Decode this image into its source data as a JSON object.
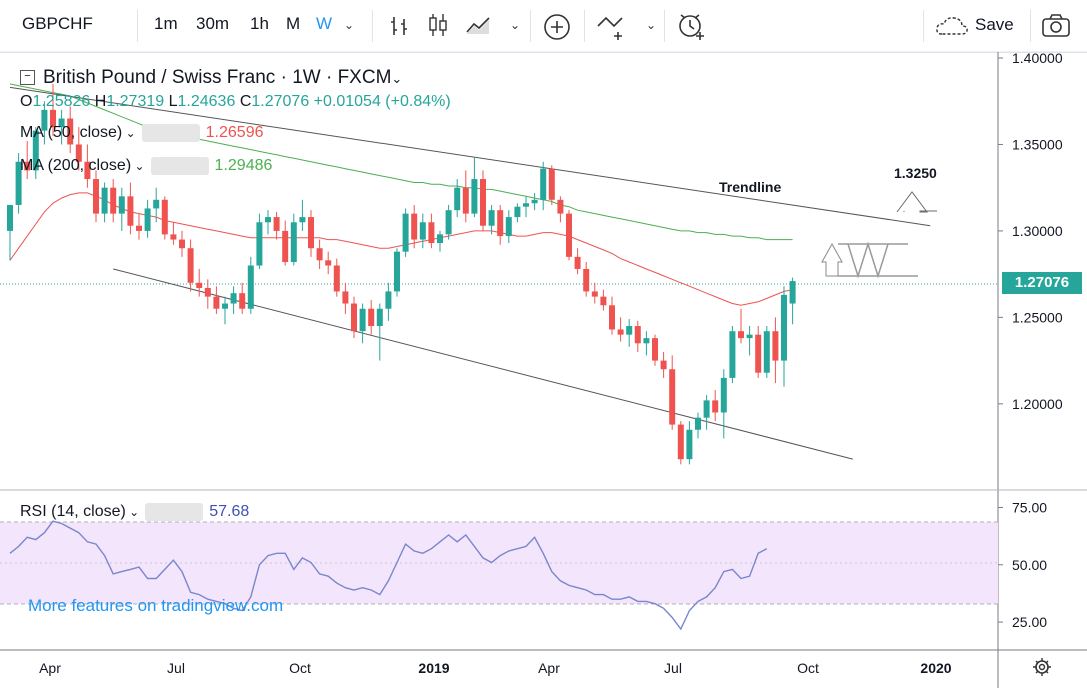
{
  "toolbar": {
    "symbol": "GBPCHF",
    "intervals": [
      "1m",
      "30m",
      "1h",
      "M",
      "W"
    ],
    "active_interval": "W",
    "save_label": "Save"
  },
  "legend": {
    "title": "British Pound / Swiss Franc · 1W · FXCM",
    "ohlc": {
      "o_label": "O",
      "o": "1.25826",
      "h_label": "H",
      "h": "1.27319",
      "l_label": "L",
      "l": "1.24636",
      "c_label": "C",
      "c": "1.27076",
      "chg": "+0.01054 (+0.84%)"
    },
    "ma50": {
      "label": "MA (50, close)",
      "value": "1.26596"
    },
    "ma200": {
      "label": "MA (200, close)",
      "value": "1.29486"
    },
    "rsi": {
      "label": "RSI (14, close)",
      "value": "57.68"
    }
  },
  "annotations": {
    "trendline": "Trendline",
    "target": "1.3250"
  },
  "promo": "More features on tradingview.com",
  "last_price": "1.27076",
  "colors": {
    "up": "#26a69a",
    "down": "#ef5350",
    "ma50": "#ef5350",
    "ma200": "#4caf50",
    "rsi": "#7986cb",
    "rsi_band": "#f3e5fc"
  },
  "chart_data": [
    {
      "type": "candlestick",
      "title": "British Pound / Swiss Franc · 1W · FXCM",
      "ylim": [
        1.16,
        1.4
      ],
      "y_ticks": [
        "1.40000",
        "1.35000",
        "1.30000",
        "1.25000",
        "1.20000"
      ],
      "x_ticks": [
        "Apr",
        "Jul",
        "Oct",
        "2019",
        "Apr",
        "Jul",
        "Oct",
        "2020"
      ],
      "candles": [
        {
          "o": 1.3,
          "h": 1.315,
          "l": 1.283,
          "c": 1.315
        },
        {
          "o": 1.315,
          "h": 1.345,
          "l": 1.31,
          "c": 1.34
        },
        {
          "o": 1.34,
          "h": 1.352,
          "l": 1.33,
          "c": 1.335
        },
        {
          "o": 1.335,
          "h": 1.36,
          "l": 1.33,
          "c": 1.358
        },
        {
          "o": 1.358,
          "h": 1.375,
          "l": 1.35,
          "c": 1.37
        },
        {
          "o": 1.37,
          "h": 1.385,
          "l": 1.355,
          "c": 1.36
        },
        {
          "o": 1.36,
          "h": 1.37,
          "l": 1.35,
          "c": 1.365
        },
        {
          "o": 1.365,
          "h": 1.372,
          "l": 1.345,
          "c": 1.35
        },
        {
          "o": 1.35,
          "h": 1.36,
          "l": 1.335,
          "c": 1.34
        },
        {
          "o": 1.34,
          "h": 1.35,
          "l": 1.325,
          "c": 1.33
        },
        {
          "o": 1.33,
          "h": 1.335,
          "l": 1.305,
          "c": 1.31
        },
        {
          "o": 1.31,
          "h": 1.328,
          "l": 1.305,
          "c": 1.325
        },
        {
          "o": 1.325,
          "h": 1.33,
          "l": 1.305,
          "c": 1.31
        },
        {
          "o": 1.31,
          "h": 1.325,
          "l": 1.3,
          "c": 1.32
        },
        {
          "o": 1.32,
          "h": 1.328,
          "l": 1.298,
          "c": 1.303
        },
        {
          "o": 1.303,
          "h": 1.31,
          "l": 1.295,
          "c": 1.3
        },
        {
          "o": 1.3,
          "h": 1.318,
          "l": 1.296,
          "c": 1.313
        },
        {
          "o": 1.313,
          "h": 1.325,
          "l": 1.305,
          "c": 1.318
        },
        {
          "o": 1.318,
          "h": 1.32,
          "l": 1.295,
          "c": 1.298
        },
        {
          "o": 1.298,
          "h": 1.305,
          "l": 1.292,
          "c": 1.295
        },
        {
          "o": 1.295,
          "h": 1.3,
          "l": 1.285,
          "c": 1.29
        },
        {
          "o": 1.29,
          "h": 1.295,
          "l": 1.265,
          "c": 1.27
        },
        {
          "o": 1.27,
          "h": 1.278,
          "l": 1.262,
          "c": 1.267
        },
        {
          "o": 1.267,
          "h": 1.272,
          "l": 1.255,
          "c": 1.262
        },
        {
          "o": 1.262,
          "h": 1.268,
          "l": 1.252,
          "c": 1.255
        },
        {
          "o": 1.255,
          "h": 1.262,
          "l": 1.246,
          "c": 1.258
        },
        {
          "o": 1.258,
          "h": 1.268,
          "l": 1.252,
          "c": 1.264
        },
        {
          "o": 1.264,
          "h": 1.27,
          "l": 1.252,
          "c": 1.255
        },
        {
          "o": 1.255,
          "h": 1.285,
          "l": 1.252,
          "c": 1.28
        },
        {
          "o": 1.28,
          "h": 1.31,
          "l": 1.278,
          "c": 1.305
        },
        {
          "o": 1.305,
          "h": 1.312,
          "l": 1.298,
          "c": 1.308
        },
        {
          "o": 1.308,
          "h": 1.311,
          "l": 1.295,
          "c": 1.3
        },
        {
          "o": 1.3,
          "h": 1.306,
          "l": 1.28,
          "c": 1.282
        },
        {
          "o": 1.282,
          "h": 1.31,
          "l": 1.28,
          "c": 1.305
        },
        {
          "o": 1.305,
          "h": 1.318,
          "l": 1.3,
          "c": 1.308
        },
        {
          "o": 1.308,
          "h": 1.312,
          "l": 1.285,
          "c": 1.29
        },
        {
          "o": 1.29,
          "h": 1.295,
          "l": 1.278,
          "c": 1.283
        },
        {
          "o": 1.283,
          "h": 1.288,
          "l": 1.275,
          "c": 1.28
        },
        {
          "o": 1.28,
          "h": 1.284,
          "l": 1.262,
          "c": 1.265
        },
        {
          "o": 1.265,
          "h": 1.27,
          "l": 1.252,
          "c": 1.258
        },
        {
          "o": 1.258,
          "h": 1.262,
          "l": 1.238,
          "c": 1.242
        },
        {
          "o": 1.242,
          "h": 1.258,
          "l": 1.235,
          "c": 1.255
        },
        {
          "o": 1.255,
          "h": 1.26,
          "l": 1.24,
          "c": 1.245
        },
        {
          "o": 1.245,
          "h": 1.258,
          "l": 1.225,
          "c": 1.255
        },
        {
          "o": 1.255,
          "h": 1.27,
          "l": 1.248,
          "c": 1.265
        },
        {
          "o": 1.265,
          "h": 1.29,
          "l": 1.262,
          "c": 1.288
        },
        {
          "o": 1.288,
          "h": 1.313,
          "l": 1.285,
          "c": 1.31
        },
        {
          "o": 1.31,
          "h": 1.315,
          "l": 1.29,
          "c": 1.295
        },
        {
          "o": 1.295,
          "h": 1.31,
          "l": 1.29,
          "c": 1.305
        },
        {
          "o": 1.305,
          "h": 1.31,
          "l": 1.29,
          "c": 1.293
        },
        {
          "o": 1.293,
          "h": 1.3,
          "l": 1.288,
          "c": 1.298
        },
        {
          "o": 1.298,
          "h": 1.315,
          "l": 1.295,
          "c": 1.312
        },
        {
          "o": 1.312,
          "h": 1.33,
          "l": 1.308,
          "c": 1.325
        },
        {
          "o": 1.325,
          "h": 1.335,
          "l": 1.305,
          "c": 1.31
        },
        {
          "o": 1.31,
          "h": 1.343,
          "l": 1.308,
          "c": 1.33
        },
        {
          "o": 1.33,
          "h": 1.335,
          "l": 1.3,
          "c": 1.303
        },
        {
          "o": 1.303,
          "h": 1.315,
          "l": 1.298,
          "c": 1.312
        },
        {
          "o": 1.312,
          "h": 1.315,
          "l": 1.292,
          "c": 1.297
        },
        {
          "o": 1.297,
          "h": 1.312,
          "l": 1.293,
          "c": 1.308
        },
        {
          "o": 1.308,
          "h": 1.316,
          "l": 1.305,
          "c": 1.314
        },
        {
          "o": 1.314,
          "h": 1.32,
          "l": 1.308,
          "c": 1.316
        },
        {
          "o": 1.316,
          "h": 1.322,
          "l": 1.312,
          "c": 1.318
        },
        {
          "o": 1.318,
          "h": 1.34,
          "l": 1.312,
          "c": 1.336
        },
        {
          "o": 1.336,
          "h": 1.338,
          "l": 1.315,
          "c": 1.318
        },
        {
          "o": 1.318,
          "h": 1.32,
          "l": 1.305,
          "c": 1.31
        },
        {
          "o": 1.31,
          "h": 1.312,
          "l": 1.283,
          "c": 1.285
        },
        {
          "o": 1.285,
          "h": 1.29,
          "l": 1.275,
          "c": 1.278
        },
        {
          "o": 1.278,
          "h": 1.282,
          "l": 1.262,
          "c": 1.265
        },
        {
          "o": 1.265,
          "h": 1.27,
          "l": 1.258,
          "c": 1.262
        },
        {
          "o": 1.262,
          "h": 1.266,
          "l": 1.254,
          "c": 1.257
        },
        {
          "o": 1.257,
          "h": 1.262,
          "l": 1.24,
          "c": 1.243
        },
        {
          "o": 1.243,
          "h": 1.25,
          "l": 1.236,
          "c": 1.24
        },
        {
          "o": 1.24,
          "h": 1.249,
          "l": 1.233,
          "c": 1.245
        },
        {
          "o": 1.245,
          "h": 1.248,
          "l": 1.23,
          "c": 1.235
        },
        {
          "o": 1.235,
          "h": 1.242,
          "l": 1.228,
          "c": 1.238
        },
        {
          "o": 1.238,
          "h": 1.24,
          "l": 1.222,
          "c": 1.225
        },
        {
          "o": 1.225,
          "h": 1.23,
          "l": 1.215,
          "c": 1.22
        },
        {
          "o": 1.22,
          "h": 1.228,
          "l": 1.185,
          "c": 1.188
        },
        {
          "o": 1.188,
          "h": 1.19,
          "l": 1.165,
          "c": 1.168
        },
        {
          "o": 1.168,
          "h": 1.19,
          "l": 1.165,
          "c": 1.185
        },
        {
          "o": 1.185,
          "h": 1.195,
          "l": 1.18,
          "c": 1.192
        },
        {
          "o": 1.192,
          "h": 1.205,
          "l": 1.185,
          "c": 1.202
        },
        {
          "o": 1.202,
          "h": 1.208,
          "l": 1.19,
          "c": 1.195
        },
        {
          "o": 1.195,
          "h": 1.22,
          "l": 1.18,
          "c": 1.215
        },
        {
          "o": 1.215,
          "h": 1.245,
          "l": 1.212,
          "c": 1.242
        },
        {
          "o": 1.242,
          "h": 1.255,
          "l": 1.235,
          "c": 1.238
        },
        {
          "o": 1.238,
          "h": 1.245,
          "l": 1.228,
          "c": 1.24
        },
        {
          "o": 1.24,
          "h": 1.245,
          "l": 1.215,
          "c": 1.218
        },
        {
          "o": 1.218,
          "h": 1.245,
          "l": 1.215,
          "c": 1.242
        },
        {
          "o": 1.242,
          "h": 1.25,
          "l": 1.212,
          "c": 1.225
        },
        {
          "o": 1.225,
          "h": 1.268,
          "l": 1.21,
          "c": 1.263
        },
        {
          "o": 1.258,
          "h": 1.273,
          "l": 1.246,
          "c": 1.271
        }
      ],
      "ma50": [
        1.283,
        1.29,
        1.297,
        1.304,
        1.311,
        1.316,
        1.319,
        1.321,
        1.322,
        1.322,
        1.32,
        1.318,
        1.315,
        1.313,
        1.311,
        1.31,
        1.309,
        1.308,
        1.306,
        1.305,
        1.304,
        1.303,
        1.302,
        1.301,
        1.3,
        1.299,
        1.298,
        1.297,
        1.296,
        1.296,
        1.296,
        1.296,
        1.296,
        1.296,
        1.296,
        1.296,
        1.296,
        1.295,
        1.295,
        1.294,
        1.293,
        1.292,
        1.291,
        1.29,
        1.29,
        1.291,
        1.292,
        1.293,
        1.294,
        1.295,
        1.296,
        1.297,
        1.298,
        1.299,
        1.3,
        1.3,
        1.3,
        1.299,
        1.298,
        1.297,
        1.297,
        1.298,
        1.299,
        1.299,
        1.298,
        1.297,
        1.295,
        1.293,
        1.291,
        1.289,
        1.287,
        1.284,
        1.282,
        1.28,
        1.278,
        1.276,
        1.274,
        1.272,
        1.27,
        1.268,
        1.266,
        1.264,
        1.262,
        1.26,
        1.258,
        1.257,
        1.258,
        1.259,
        1.261,
        1.263,
        1.265,
        1.266
      ],
      "ma200": [
        1.385,
        1.384,
        1.383,
        1.382,
        1.381,
        1.38,
        1.379,
        1.378,
        1.376,
        1.374,
        1.372,
        1.37,
        1.368,
        1.366,
        1.364,
        1.362,
        1.36,
        1.358,
        1.357,
        1.356,
        1.355,
        1.354,
        1.353,
        1.352,
        1.351,
        1.35,
        1.349,
        1.348,
        1.347,
        1.346,
        1.345,
        1.344,
        1.343,
        1.342,
        1.341,
        1.34,
        1.339,
        1.338,
        1.337,
        1.336,
        1.335,
        1.334,
        1.333,
        1.332,
        1.331,
        1.33,
        1.329,
        1.328,
        1.328,
        1.327,
        1.327,
        1.326,
        1.326,
        1.325,
        1.325,
        1.324,
        1.324,
        1.323,
        1.322,
        1.321,
        1.32,
        1.319,
        1.318,
        1.317,
        1.315,
        1.314,
        1.312,
        1.311,
        1.31,
        1.309,
        1.308,
        1.307,
        1.306,
        1.305,
        1.304,
        1.303,
        1.302,
        1.301,
        1.3,
        1.3,
        1.299,
        1.299,
        1.298,
        1.298,
        1.297,
        1.297,
        1.296,
        1.296,
        1.295,
        1.295,
        1.295,
        1.295
      ],
      "trendlines": [
        {
          "from": [
            0,
            1.383
          ],
          "to": [
            107,
            1.303
          ]
        },
        {
          "from": [
            12,
            1.278
          ],
          "to": [
            98,
            1.168
          ]
        }
      ]
    },
    {
      "type": "line",
      "title": "RSI (14, close)",
      "ylim": [
        15,
        80
      ],
      "y_ticks": [
        "75.00",
        "50.00",
        "25.00"
      ],
      "band": [
        30,
        70
      ],
      "values": [
        55,
        58,
        62,
        61,
        64,
        69,
        68,
        66,
        64,
        60,
        59,
        54,
        46,
        47,
        48,
        49,
        44,
        44,
        48,
        52,
        47,
        38,
        37,
        35,
        34,
        33,
        31,
        30,
        36,
        50,
        54,
        55,
        55,
        48,
        53,
        51,
        46,
        45,
        42,
        40,
        39,
        40,
        39,
        37,
        43,
        51,
        59,
        56,
        55,
        57,
        60,
        63,
        60,
        63,
        58,
        53,
        51,
        54,
        56,
        57,
        58,
        62,
        55,
        47,
        43,
        41,
        40,
        39,
        37,
        37,
        35,
        35,
        36,
        34,
        34,
        33,
        31,
        27,
        22,
        30,
        34,
        36,
        40,
        47,
        48,
        44,
        45,
        55,
        57
      ]
    }
  ]
}
